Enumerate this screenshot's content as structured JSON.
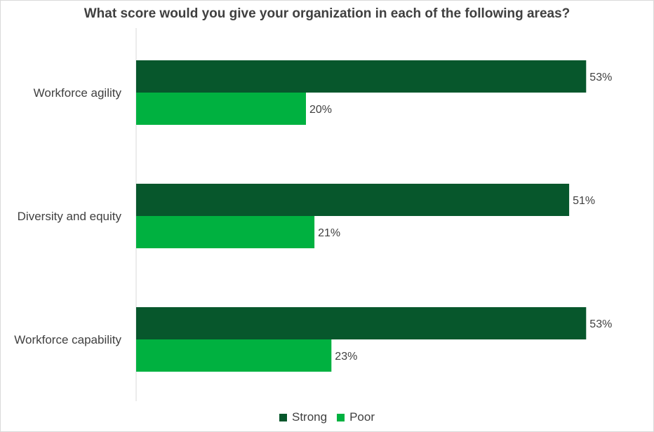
{
  "chart_data": {
    "type": "bar",
    "orientation": "horizontal",
    "title": "What score would you give your organization in each of the following areas?",
    "categories": [
      "Workforce agility",
      "Diversity and equity",
      "Workforce capability"
    ],
    "series": [
      {
        "name": "Strong",
        "color": "#07572c",
        "values": [
          53,
          51,
          53
        ],
        "labels": [
          "53%",
          "51%",
          "53%"
        ]
      },
      {
        "name": "Poor",
        "color": "#00b140",
        "values": [
          20,
          21,
          23
        ],
        "labels": [
          "20%",
          "21%",
          "23%"
        ]
      }
    ],
    "xlim": [
      0,
      60
    ],
    "grid": false,
    "legend_position": "bottom"
  }
}
